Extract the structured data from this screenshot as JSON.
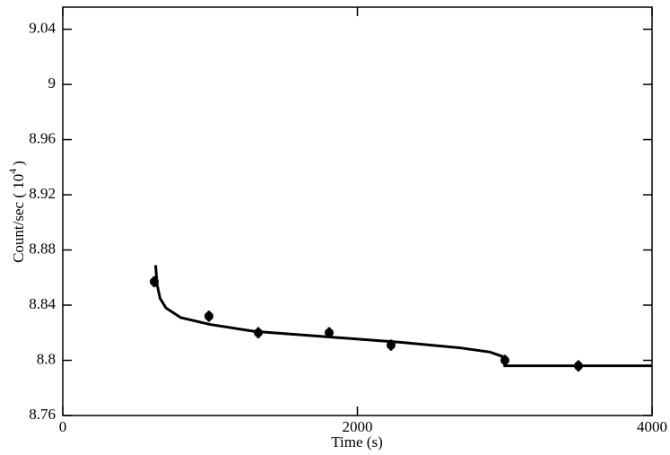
{
  "chart_data": {
    "type": "scatter",
    "xlabel": "Time (s)",
    "ylabel": {
      "text": "Count/sec ( 10",
      "superscript": "4",
      "suffix": ")"
    },
    "xlim": [
      0,
      4000
    ],
    "xticks": [
      0,
      2000,
      4000
    ],
    "ylim": [
      8.76,
      9.056
    ],
    "yticks": [
      8.76,
      8.8,
      8.84,
      8.88,
      8.92,
      8.96,
      9,
      9.04
    ],
    "series": [
      {
        "kind": "points",
        "color": "#000000",
        "x": [
          621,
          992,
          1327,
          1808,
          2228,
          3001,
          3500
        ],
        "values": [
          8.857,
          8.832,
          8.82,
          8.82,
          8.811,
          8.8,
          8.796
        ],
        "errors": [
          0.004,
          0.004,
          0.004,
          0.004,
          0.004,
          0.004,
          0.004
        ]
      },
      {
        "kind": "line",
        "color": "#000000",
        "x": [
          630,
          640,
          660,
          700,
          800,
          1000,
          1300,
          1800,
          2300,
          2700,
          2900,
          2980,
          3000,
          3000,
          4000
        ],
        "values": [
          8.869,
          8.855,
          8.845,
          8.838,
          8.831,
          8.826,
          8.821,
          8.817,
          8.813,
          8.809,
          8.806,
          8.803,
          8.799,
          8.796,
          8.796
        ]
      }
    ]
  }
}
